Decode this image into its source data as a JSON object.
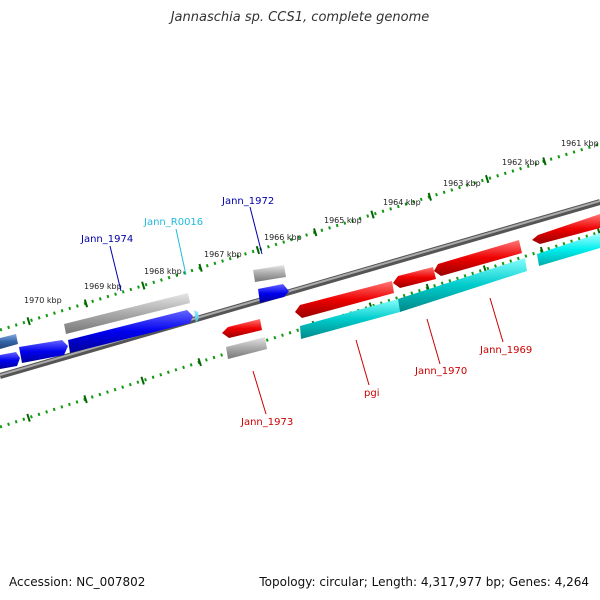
{
  "title": "Jannaschia sp. CCS1, complete genome",
  "footer": {
    "accession": "Accession: NC_007802",
    "topology": "Topology: circular; Length: 4,317,977 bp; Genes: 4,264"
  },
  "scale_labels": [
    "1961 kbp",
    "1962 kbp",
    "1963 kbp",
    "1964 kbp",
    "1965 kbp",
    "1966 kbp",
    "1967 kbp",
    "1968 kbp",
    "1969 kbp",
    "1970 kbp"
  ],
  "gene_labels": {
    "jann_1974": "Jann_1974",
    "jann_r0016": "Jann_R0016",
    "jann_1972": "Jann_1972",
    "jann_1973": "Jann_1973",
    "pgi": "pgi",
    "jann_1970": "Jann_1970",
    "jann_1969": "Jann_1969"
  },
  "colors": {
    "forward_strand": "#0000ee",
    "forward_label": "#0000aa",
    "rna_label": "#22bbdd",
    "reverse_strand": "#ee0000",
    "reverse_label": "#cc0000",
    "cds_bar": "#00cccc",
    "gene_bar": "#aaaaaa",
    "backbone": "#777777",
    "tick": "#006600"
  }
}
